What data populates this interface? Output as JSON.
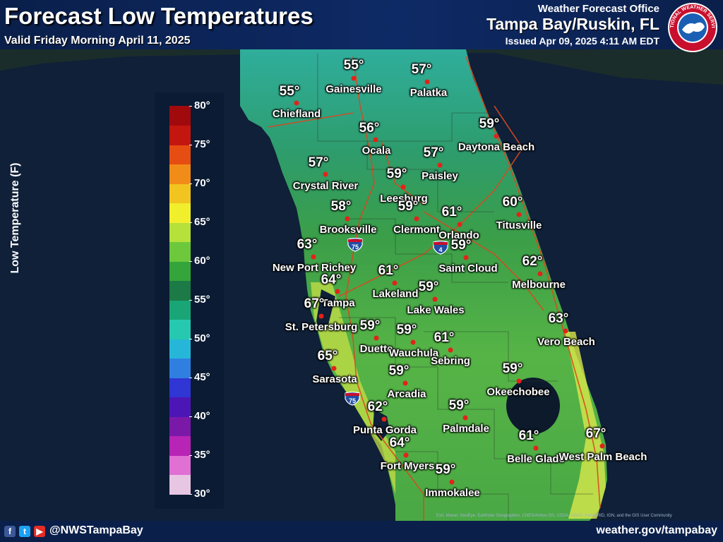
{
  "header": {
    "title": "Forecast Low Temperatures",
    "valid": "Valid Friday Morning April 11, 2025",
    "office_line1": "Weather Forecast Office",
    "office_name": "Tampa Bay/Ruskin, FL",
    "issued": "Issued Apr 09, 2025 4:11 AM EDT"
  },
  "logo": {
    "text": "NATIONAL WEATHER SERVICE",
    "icon": "nws-logo-icon"
  },
  "legend": {
    "title": "Low Temperature (F)",
    "ticks": [
      "80°",
      "75°",
      "70°",
      "65°",
      "60°",
      "55°",
      "50°",
      "45°",
      "40°",
      "35°",
      "30°"
    ],
    "min": 30,
    "max": 80,
    "colors": [
      "#e7c6e4",
      "#e070d4",
      "#b824b5",
      "#7a19a8",
      "#4b16b5",
      "#2f36d3",
      "#2f7fe0",
      "#26b7d8",
      "#26c8b0",
      "#1aa576",
      "#1c7a46",
      "#33a53b",
      "#6dc83c",
      "#b6e03a",
      "#f1ee2b",
      "#f2c420",
      "#f28c18",
      "#e64d12",
      "#c3160f",
      "#a10a0c"
    ]
  },
  "cities": [
    {
      "name": "Gainesville",
      "temp": "55°"
    },
    {
      "name": "Palatka",
      "temp": "57°"
    },
    {
      "name": "Chiefland",
      "temp": "55°"
    },
    {
      "name": "Ocala",
      "temp": "56°"
    },
    {
      "name": "Daytona Beach",
      "temp": "59°"
    },
    {
      "name": "Crystal River",
      "temp": "57°"
    },
    {
      "name": "Paisley",
      "temp": "57°"
    },
    {
      "name": "Leesburg",
      "temp": "59°"
    },
    {
      "name": "Clermont",
      "temp": "59°"
    },
    {
      "name": "Brooksville",
      "temp": "58°"
    },
    {
      "name": "Orlando",
      "temp": "61°"
    },
    {
      "name": "Titusville",
      "temp": "60°"
    },
    {
      "name": "New Port Richey",
      "temp": "63°"
    },
    {
      "name": "Saint Cloud",
      "temp": "59°"
    },
    {
      "name": "Melbourne",
      "temp": "62°"
    },
    {
      "name": "Tampa",
      "temp": "64°"
    },
    {
      "name": "Lakeland",
      "temp": "61°"
    },
    {
      "name": "Lake Wales",
      "temp": "59°"
    },
    {
      "name": "St. Petersburg",
      "temp": "67°"
    },
    {
      "name": "Duette",
      "temp": "59°"
    },
    {
      "name": "Wauchula",
      "temp": "59°"
    },
    {
      "name": "Sebring",
      "temp": "61°"
    },
    {
      "name": "Vero Beach",
      "temp": "63°"
    },
    {
      "name": "Sarasota",
      "temp": "65°"
    },
    {
      "name": "Arcadia",
      "temp": "59°"
    },
    {
      "name": "Okeechobee",
      "temp": "59°"
    },
    {
      "name": "Punta Gorda",
      "temp": "62°"
    },
    {
      "name": "Palmdale",
      "temp": "59°"
    },
    {
      "name": "Fort Myers",
      "temp": "64°"
    },
    {
      "name": "Belle Glade",
      "temp": "61°"
    },
    {
      "name": "West Palm Beach",
      "temp": "67°"
    },
    {
      "name": "Immokalee",
      "temp": "59°"
    }
  ],
  "highway_shields": [
    "75",
    "4",
    "75"
  ],
  "footer": {
    "social_icons": [
      "facebook-icon",
      "twitter-icon",
      "youtube-icon"
    ],
    "handle": "@NWSTampaBay",
    "website": "weather.gov/tampabay",
    "credits": "Esri, Maxar, GeoEye, Earthstar Geographics, CNES/Airbus DS, USDA, USGS, AeroGRID, IGN, and the GIS User Community"
  },
  "colors": {
    "header_bg": "#0e2a66",
    "dot": "#e2231a",
    "land_cool": "#2aa89a",
    "land_mid": "#3e9e45",
    "land_warm": "#dce84a"
  }
}
